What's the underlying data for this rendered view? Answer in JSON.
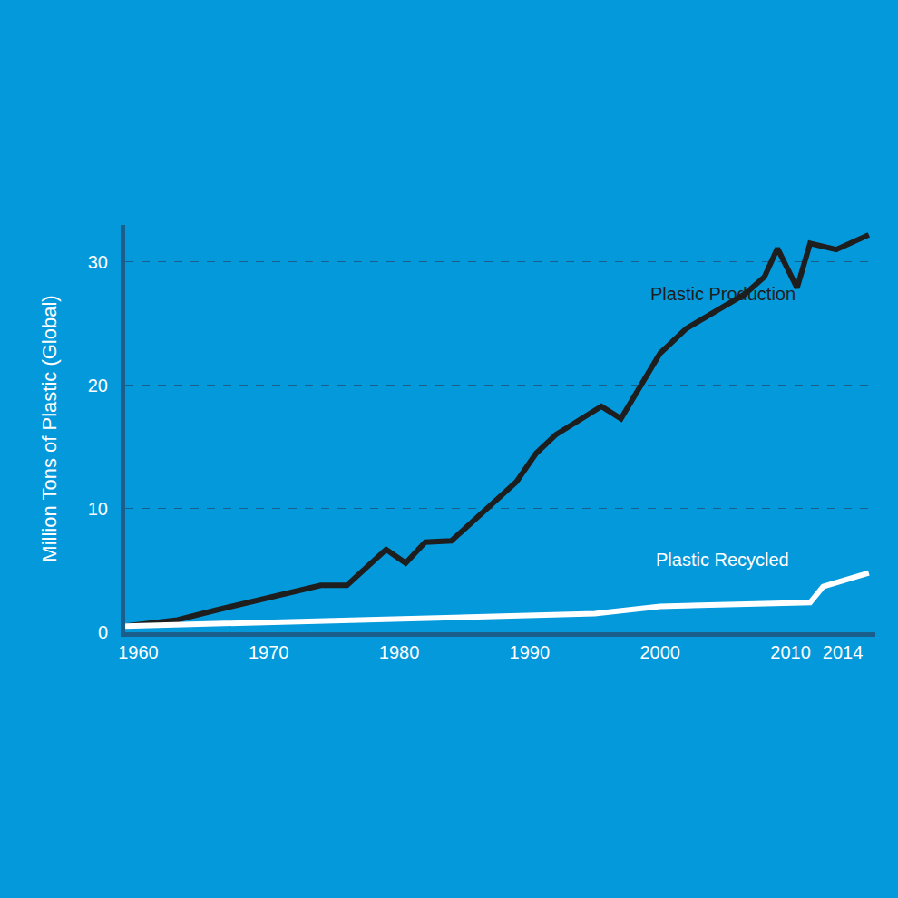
{
  "chart_data": {
    "type": "line",
    "y_label": "Million Tons of Plastic (Global)",
    "series": [
      {
        "name": "Plastic Production",
        "color": "#1e1e1e",
        "x": [
          1959,
          1963,
          1966,
          1970,
          1974,
          1976,
          1979,
          1980.5,
          1982,
          1984,
          1989,
          1990.5,
          1992,
          1995.5,
          1997,
          2000,
          2002,
          2006.5,
          2008,
          2009,
          2010.5,
          2011.5,
          2013.5,
          2016
        ],
        "values": [
          0.5,
          1.0,
          1.8,
          2.8,
          3.8,
          3.8,
          6.7,
          5.6,
          7.3,
          7.4,
          12.2,
          14.5,
          16.0,
          18.3,
          17.3,
          22.6,
          24.6,
          27.4,
          28.8,
          31.1,
          27.9,
          31.5,
          31.0,
          32.2
        ]
      },
      {
        "name": "Plastic Recycled",
        "color": "#ffffff",
        "x": [
          1959,
          1995,
          2000,
          2011.5,
          2012.5,
          2016
        ],
        "values": [
          0.5,
          1.5,
          2.1,
          2.4,
          3.7,
          4.8
        ]
      }
    ],
    "annotations": [
      {
        "text": "Plastic Production",
        "x": 2004.8,
        "y": 27.4,
        "color": "#1e1e1e"
      },
      {
        "text": "Plastic Recycled",
        "x": 2004.8,
        "y": 5.9,
        "color": "#ffffff"
      }
    ],
    "xlim": [
      1959,
      2016.5
    ],
    "xticks": [
      1960,
      1970,
      1980,
      1990,
      2000,
      2010,
      2014
    ],
    "ylim": [
      0,
      33
    ],
    "yticks": [
      0,
      10,
      20,
      30
    ],
    "grid": true
  }
}
